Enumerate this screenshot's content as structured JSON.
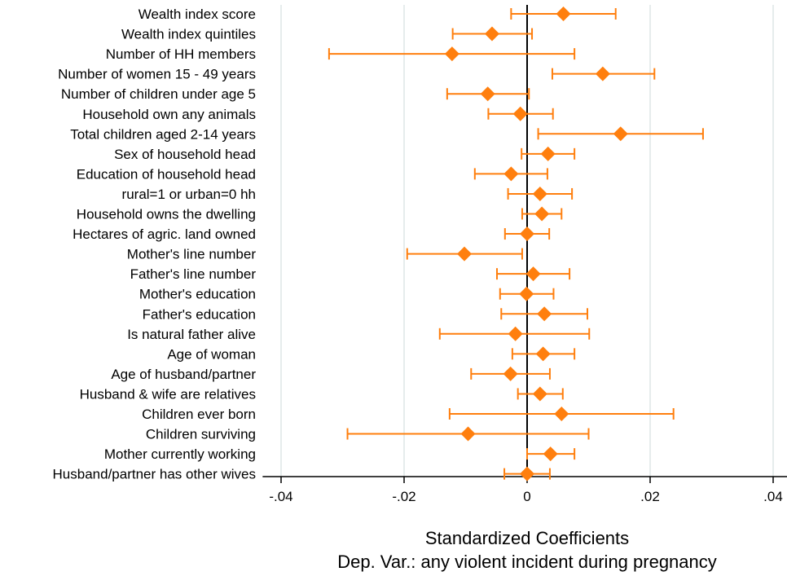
{
  "chart_data": {
    "type": "scatter",
    "subtype": "coefficient-plot",
    "title": "",
    "xlabel": "Standardized Coefficients",
    "xlabel2": "Dep. Var.: any violent incident during pregnancy",
    "ylabel": "",
    "xlim": [
      -0.043,
      0.043
    ],
    "xticks": [
      -0.04,
      -0.02,
      0,
      0.02,
      0.04
    ],
    "xtick_labels": [
      "-.04",
      "-.02",
      "0",
      ".02",
      ".04"
    ],
    "grid": true,
    "reference_line": 0,
    "colors": {
      "marker": "#ff7f0e",
      "ci": "#ff7f0e",
      "grid": "#e6ecec",
      "refline": "#000000"
    },
    "series": [
      {
        "points": [
          {
            "label": "Wealth index score",
            "coef": 0.0059,
            "lo": -0.0026,
            "hi": 0.0144
          },
          {
            "label": "Wealth index quintiles",
            "coef": -0.0057,
            "lo": -0.0121,
            "hi": 0.0008
          },
          {
            "label": "Number of HH members",
            "coef": -0.0122,
            "lo": -0.0322,
            "hi": 0.0077
          },
          {
            "label": "Number of women 15 - 49 years",
            "coef": 0.0123,
            "lo": 0.0041,
            "hi": 0.0207
          },
          {
            "label": "Number of children under age 5",
            "coef": -0.0064,
            "lo": -0.013,
            "hi": 0.0003
          },
          {
            "label": "Household own any animals",
            "coef": -0.0011,
            "lo": -0.0063,
            "hi": 0.0042
          },
          {
            "label": "Total children aged 2-14 years",
            "coef": 0.0152,
            "lo": 0.0018,
            "hi": 0.0286
          },
          {
            "label": "Sex of household head",
            "coef": 0.0034,
            "lo": -0.0009,
            "hi": 0.0077
          },
          {
            "label": "Education of household head",
            "coef": -0.0026,
            "lo": -0.0085,
            "hi": 0.0033
          },
          {
            "label": "rural=1 or urban=0 hh",
            "coef": 0.0021,
            "lo": -0.0031,
            "hi": 0.0073
          },
          {
            "label": "Household owns the dwelling",
            "coef": 0.0024,
            "lo": -0.0008,
            "hi": 0.0056
          },
          {
            "label": "Hectares of agric. land owned",
            "coef": 0.0,
            "lo": -0.0036,
            "hi": 0.0036
          },
          {
            "label": "Mother's line number",
            "coef": -0.0102,
            "lo": -0.0195,
            "hi": -0.0008
          },
          {
            "label": "Father's line number",
            "coef": 0.001,
            "lo": -0.0049,
            "hi": 0.0069
          },
          {
            "label": "Mother's education",
            "coef": -0.0001,
            "lo": -0.0044,
            "hi": 0.0043
          },
          {
            "label": "Father's education",
            "coef": 0.0028,
            "lo": -0.0042,
            "hi": 0.0098
          },
          {
            "label": "Is natural father alive",
            "coef": -0.0019,
            "lo": -0.0142,
            "hi": 0.0101
          },
          {
            "label": "Age of woman",
            "coef": 0.0026,
            "lo": -0.0024,
            "hi": 0.0077
          },
          {
            "label": "Age of husband/partner",
            "coef": -0.0027,
            "lo": -0.0091,
            "hi": 0.0037
          },
          {
            "label": "Husband & wife are relatives",
            "coef": 0.0021,
            "lo": -0.0015,
            "hi": 0.0058
          },
          {
            "label": "Children ever born",
            "coef": 0.0056,
            "lo": -0.0126,
            "hi": 0.0238
          },
          {
            "label": "Children surviving",
            "coef": -0.0096,
            "lo": -0.0292,
            "hi": 0.01
          },
          {
            "label": "Mother currently working",
            "coef": 0.0038,
            "lo": 0.0,
            "hi": 0.0077
          },
          {
            "label": "Husband/partner has other wives",
            "coef": 0.0,
            "lo": -0.0037,
            "hi": 0.0037
          }
        ]
      }
    ]
  }
}
